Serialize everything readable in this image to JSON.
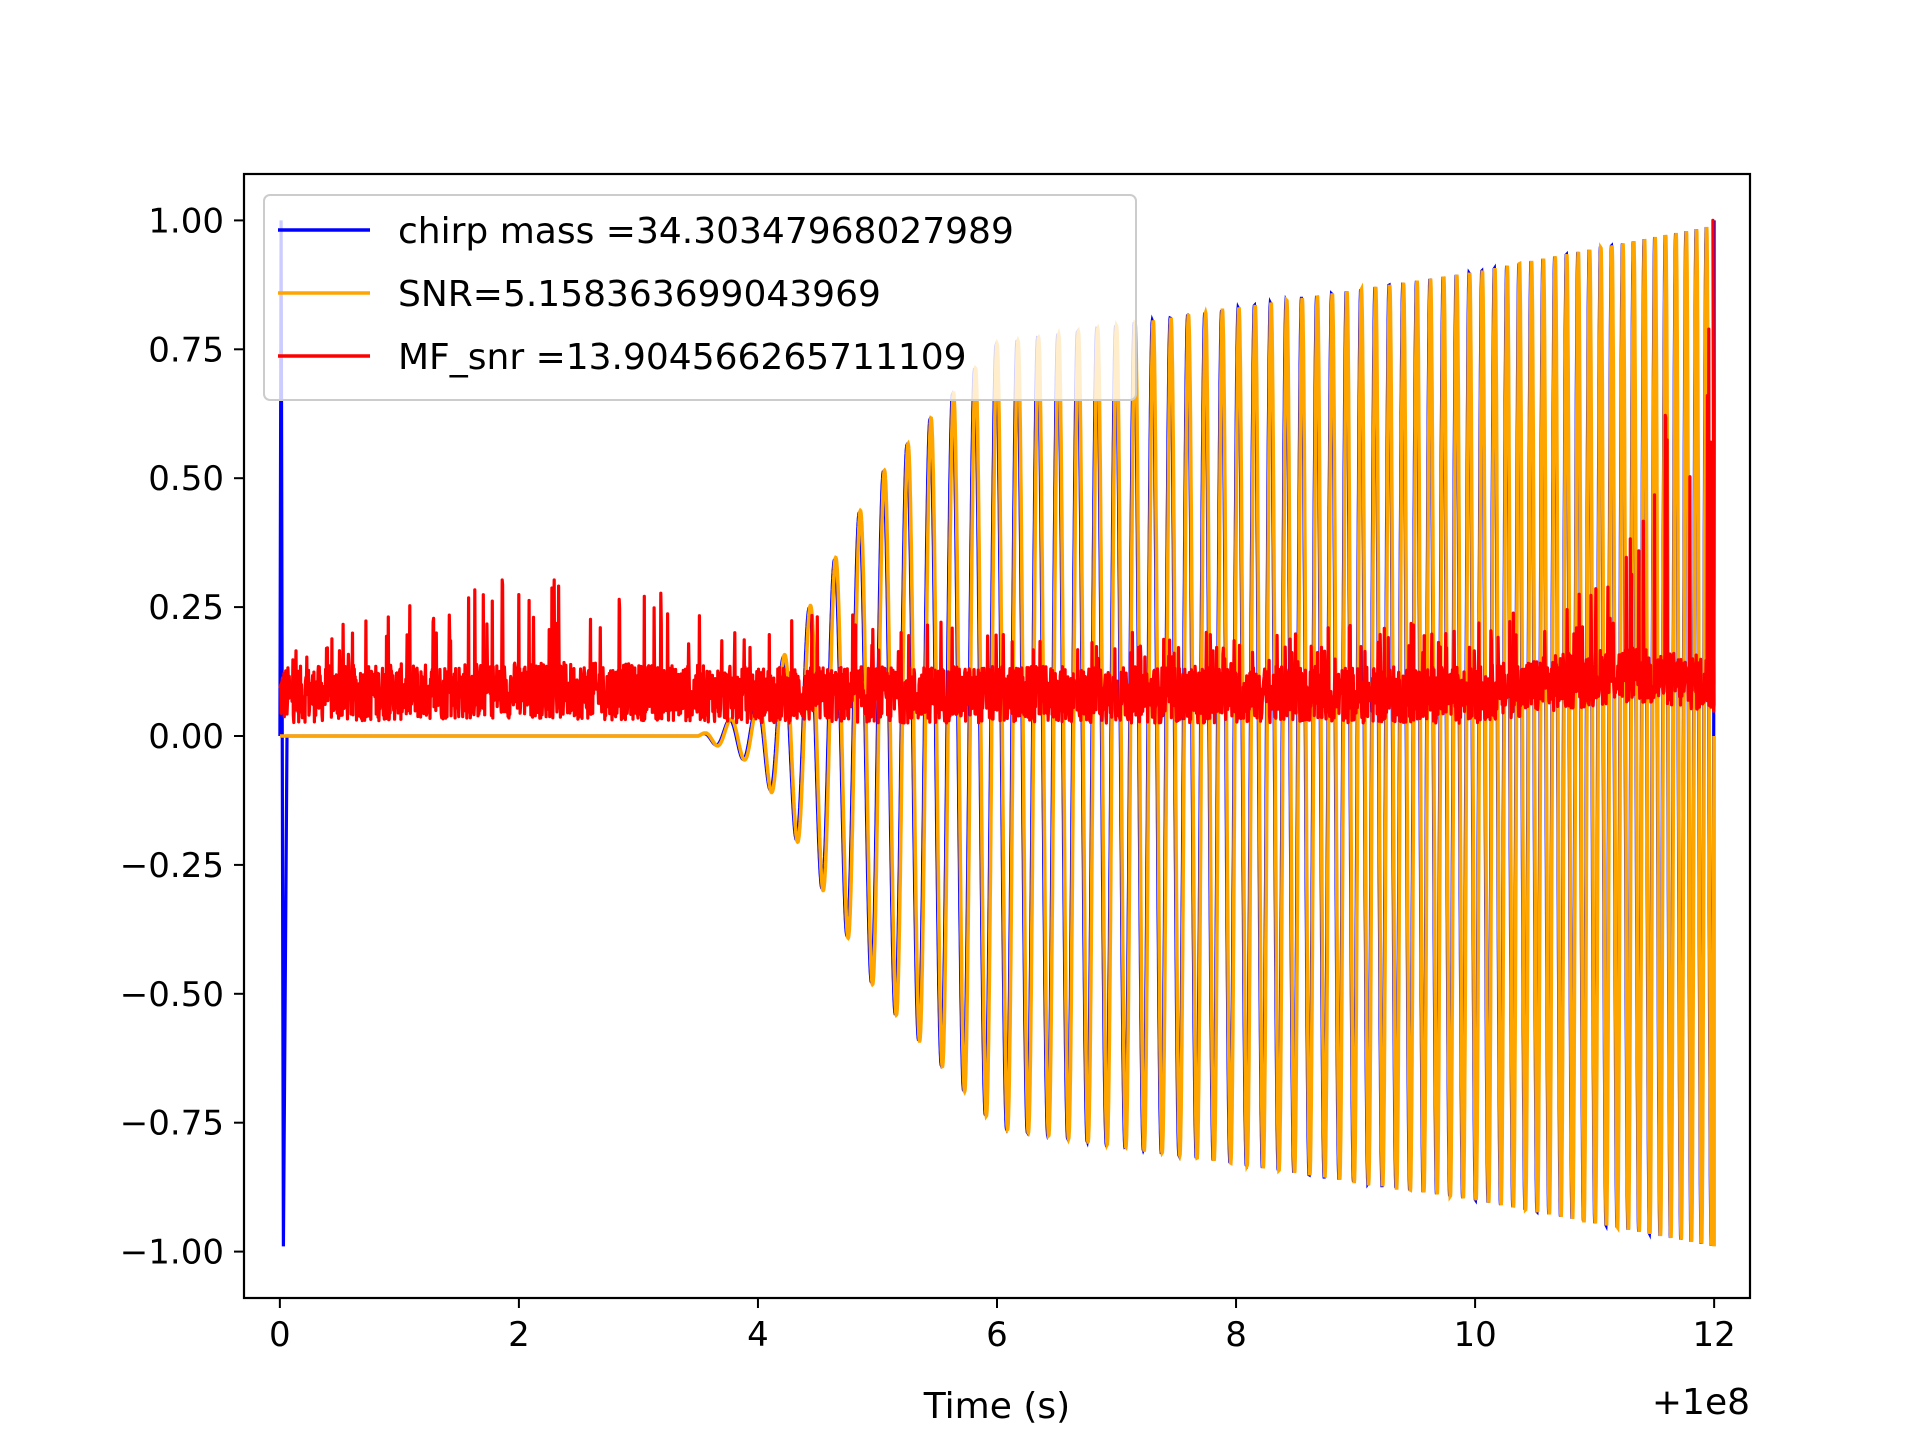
{
  "chart_data": {
    "type": "line",
    "title": "",
    "xlabel": "Time (s)",
    "ylabel": "",
    "x_offset_label": "+1e8",
    "xlim": [
      -0.3,
      12.3
    ],
    "ylim": [
      -1.09,
      1.09
    ],
    "x_ticks": [
      0,
      2,
      4,
      6,
      8,
      10,
      12
    ],
    "x_tick_labels": [
      "0",
      "2",
      "4",
      "6",
      "8",
      "10",
      "12"
    ],
    "y_ticks": [
      1.0,
      0.75,
      0.5,
      0.25,
      0.0,
      -0.25,
      -0.5,
      -0.75,
      -1.0
    ],
    "y_tick_labels": [
      "1.00",
      "0.75",
      "0.50",
      "0.25",
      "0.00",
      "−0.25",
      "−0.50",
      "−0.75",
      "−1.00"
    ],
    "grid": false,
    "legend_position": "top-left",
    "series": [
      {
        "name": "chirp mass =34.30347968027989",
        "color": "#0000ff",
        "description_points": {
          "x": [
            0.0,
            0.02,
            0.05,
            3.5,
            4.0,
            5.0,
            6.0,
            8.0,
            10.0,
            12.0
          ],
          "envelope": [
            1.0,
            1.0,
            0.0,
            0.0,
            0.06,
            0.5,
            0.76,
            0.83,
            0.9,
            0.99
          ]
        }
      },
      {
        "name": "SNR=5.158363699043969",
        "color": "#ffa500",
        "description_points": {
          "x": [
            0.0,
            3.5,
            4.0,
            5.0,
            6.0,
            8.0,
            10.0,
            12.0
          ],
          "envelope": [
            0.0,
            0.0,
            0.06,
            0.5,
            0.76,
            0.83,
            0.9,
            0.99
          ]
        }
      },
      {
        "name": "MF_snr =13.904566265711109",
        "color": "#ff0000",
        "description_points": {
          "x": [
            0.0,
            2.0,
            4.0,
            6.0,
            8.0,
            10.0,
            11.2,
            12.0
          ],
          "mean": [
            0.08,
            0.09,
            0.08,
            0.08,
            0.08,
            0.08,
            0.12,
            0.1
          ],
          "peak": [
            0.18,
            0.32,
            0.25,
            0.22,
            0.2,
            0.23,
            0.3,
            1.0
          ]
        }
      }
    ]
  }
}
